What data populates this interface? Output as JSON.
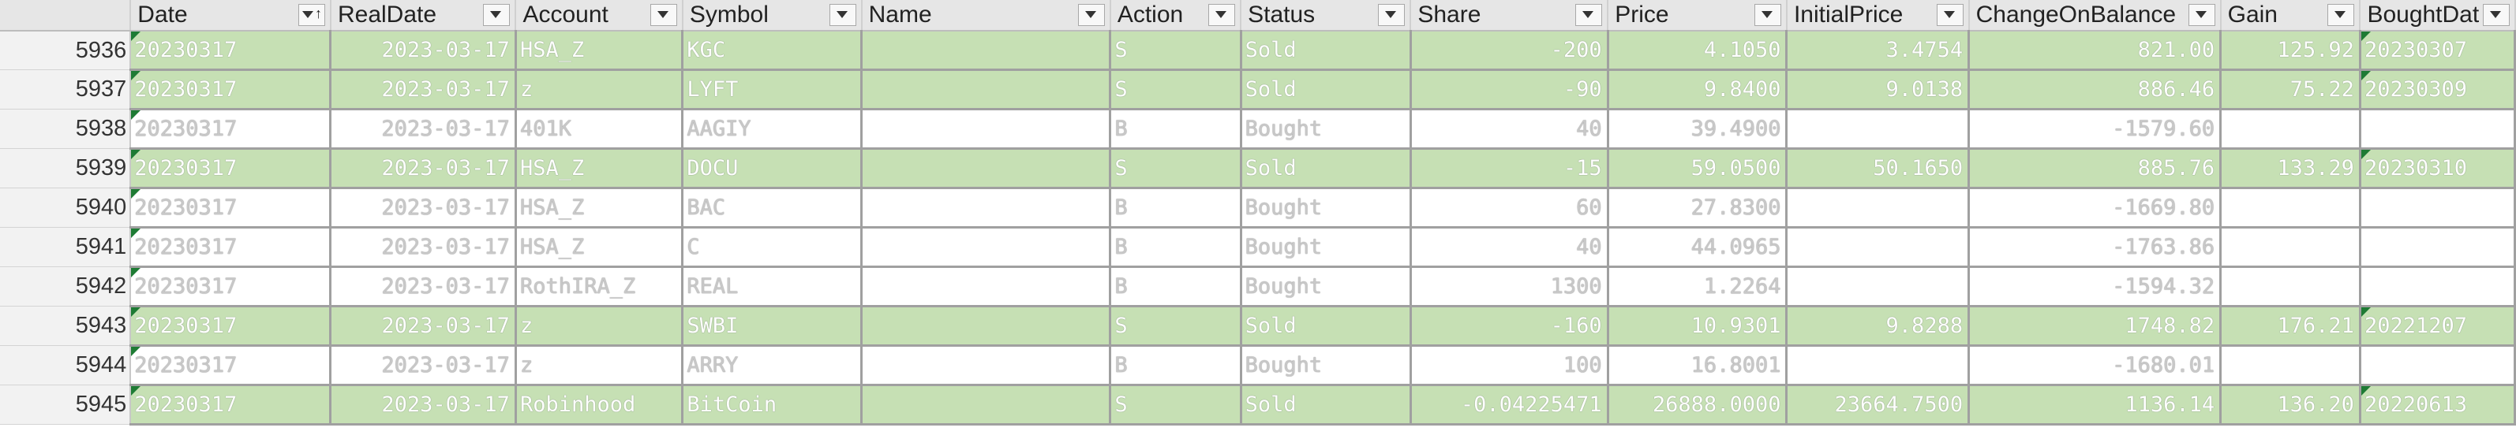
{
  "columns": [
    {
      "label": "Date",
      "sorted": true
    },
    {
      "label": "RealDate",
      "sorted": false
    },
    {
      "label": "Account",
      "sorted": false
    },
    {
      "label": "Symbol",
      "sorted": false
    },
    {
      "label": "Name",
      "sorted": false
    },
    {
      "label": "Action",
      "sorted": false
    },
    {
      "label": "Status",
      "sorted": false
    },
    {
      "label": "Share",
      "sorted": false
    },
    {
      "label": "Price",
      "sorted": false
    },
    {
      "label": "InitialPrice",
      "sorted": false
    },
    {
      "label": "ChangeOnBalance",
      "sorted": false
    },
    {
      "label": "Gain",
      "sorted": false
    },
    {
      "label": "BoughtDat",
      "sorted": false
    }
  ],
  "rows": [
    {
      "num": "5936",
      "status_type": "sold",
      "cells": [
        "20230317",
        "2023-03-17",
        "HSA_Z",
        "KGC",
        "",
        "S",
        "Sold",
        "-200",
        "4.1050",
        "3.4754",
        "821.00",
        "125.92",
        "20230307"
      ]
    },
    {
      "num": "5937",
      "status_type": "sold",
      "cells": [
        "20230317",
        "2023-03-17",
        "z",
        "LYFT",
        "",
        "S",
        "Sold",
        "-90",
        "9.8400",
        "9.0138",
        "886.46",
        "75.22",
        "20230309"
      ]
    },
    {
      "num": "5938",
      "status_type": "bought",
      "cells": [
        "20230317",
        "2023-03-17",
        "401K",
        "AAGIY",
        "",
        "B",
        "Bought",
        "40",
        "39.4900",
        "",
        "-1579.60",
        "",
        ""
      ]
    },
    {
      "num": "5939",
      "status_type": "sold",
      "cells": [
        "20230317",
        "2023-03-17",
        "HSA_Z",
        "DOCU",
        "",
        "S",
        "Sold",
        "-15",
        "59.0500",
        "50.1650",
        "885.76",
        "133.29",
        "20230310"
      ]
    },
    {
      "num": "5940",
      "status_type": "bought",
      "cells": [
        "20230317",
        "2023-03-17",
        "HSA_Z",
        "BAC",
        "",
        "B",
        "Bought",
        "60",
        "27.8300",
        "",
        "-1669.80",
        "",
        ""
      ]
    },
    {
      "num": "5941",
      "status_type": "bought",
      "cells": [
        "20230317",
        "2023-03-17",
        "HSA_Z",
        "C",
        "",
        "B",
        "Bought",
        "40",
        "44.0965",
        "",
        "-1763.86",
        "",
        ""
      ]
    },
    {
      "num": "5942",
      "status_type": "bought",
      "cells": [
        "20230317",
        "2023-03-17",
        "RothIRA_Z",
        "REAL",
        "",
        "B",
        "Bought",
        "1300",
        "1.2264",
        "",
        "-1594.32",
        "",
        ""
      ]
    },
    {
      "num": "5943",
      "status_type": "sold",
      "cells": [
        "20230317",
        "2023-03-17",
        "z",
        "SWBI",
        "",
        "S",
        "Sold",
        "-160",
        "10.9301",
        "9.8288",
        "1748.82",
        "176.21",
        "20221207"
      ]
    },
    {
      "num": "5944",
      "status_type": "bought",
      "cells": [
        "20230317",
        "2023-03-17",
        "z",
        "ARRY",
        "",
        "B",
        "Bought",
        "100",
        "16.8001",
        "",
        "-1680.01",
        "",
        ""
      ]
    },
    {
      "num": "5945",
      "status_type": "sold",
      "cells": [
        "20230317",
        "2023-03-17",
        "Robinhood",
        "BitCoin",
        "",
        "S",
        "Sold",
        "-0.04225471",
        "26888.0000",
        "23664.7500",
        "1136.14",
        "136.20",
        "20220613"
      ]
    }
  ]
}
